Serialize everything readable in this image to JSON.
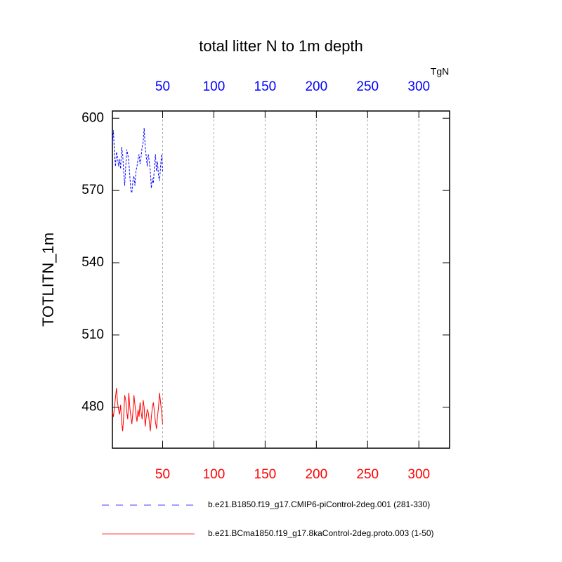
{
  "chart_data": {
    "type": "line",
    "title": "total litter N to 1m depth",
    "ylabel": "TOTLITN_1m",
    "units": "TgN",
    "xlim": [
      1,
      330
    ],
    "xticks": [
      50,
      100,
      150,
      200,
      250,
      300
    ],
    "ylim": [
      463,
      603
    ],
    "yticks": [
      480,
      510,
      540,
      570,
      600
    ],
    "xtick_colors": {
      "top": "#0000ff",
      "bottom": "#ff0000"
    },
    "grid": true,
    "series": [
      {
        "name": "b.e21.B1850.f19_g17.CMIP6-piControl-2deg.001 (281-330)",
        "color": "#0000ff",
        "dash": true,
        "x": [
          1,
          2,
          3,
          4,
          5,
          6,
          7,
          8,
          9,
          10,
          11,
          12,
          13,
          14,
          15,
          16,
          17,
          18,
          19,
          20,
          21,
          22,
          23,
          24,
          25,
          26,
          27,
          28,
          29,
          30,
          31,
          32,
          33,
          34,
          35,
          36,
          37,
          38,
          39,
          40,
          41,
          42,
          43,
          44,
          45,
          46,
          47,
          48,
          49,
          50
        ],
        "values": [
          590,
          595,
          585,
          580,
          586,
          584,
          580,
          583,
          579,
          588,
          585,
          578,
          572,
          580,
          587,
          585,
          582,
          576,
          570,
          569,
          574,
          576,
          572,
          578,
          580,
          583,
          585,
          581,
          584,
          588,
          590,
          596,
          588,
          584,
          580,
          585,
          582,
          578,
          571,
          575,
          573,
          580,
          585,
          578,
          582,
          576,
          574,
          580,
          585,
          578
        ]
      },
      {
        "name": "b.e21.BCma1850.f19_g17.8kaControl-2deg.proto.003 (1-50)",
        "color": "#ff0000",
        "dash": false,
        "x": [
          1,
          2,
          3,
          4,
          5,
          6,
          7,
          8,
          9,
          10,
          11,
          12,
          13,
          14,
          15,
          16,
          17,
          18,
          19,
          20,
          21,
          22,
          23,
          24,
          25,
          26,
          27,
          28,
          29,
          30,
          31,
          32,
          33,
          34,
          35,
          36,
          37,
          38,
          39,
          40,
          41,
          42,
          43,
          44,
          45,
          46,
          47,
          48,
          49,
          50
        ],
        "values": [
          478,
          476,
          480,
          484,
          488,
          482,
          479,
          477,
          481,
          474,
          470,
          476,
          485,
          483,
          478,
          475,
          486,
          480,
          476,
          473,
          478,
          485,
          481,
          477,
          474,
          479,
          476,
          482,
          478,
          475,
          483,
          480,
          472,
          476,
          479,
          478,
          474,
          470,
          476,
          480,
          482,
          478,
          474,
          471,
          476,
          480,
          486,
          482,
          478,
          473
        ]
      }
    ]
  }
}
